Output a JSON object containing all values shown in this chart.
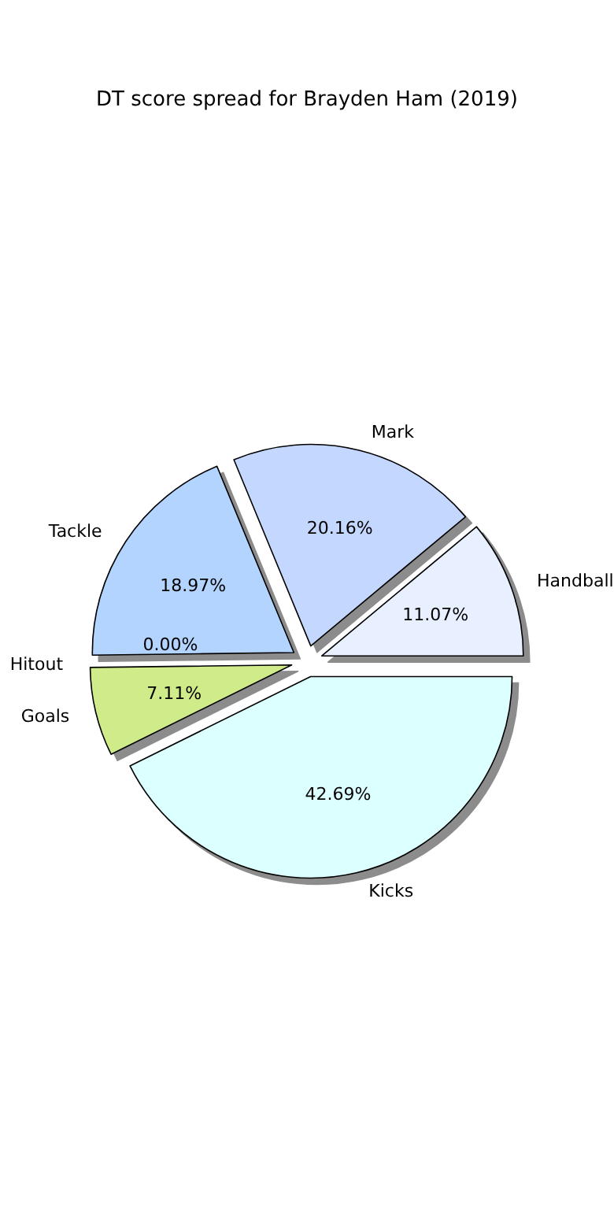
{
  "chart_data": {
    "type": "pie",
    "title": "DT score spread for Brayden Ham (2019)",
    "categories": [
      "Handball",
      "Mark",
      "Tackle",
      "Hitout",
      "Goals",
      "Kicks"
    ],
    "values": [
      11.07,
      20.16,
      18.97,
      0.0,
      7.11,
      42.69
    ],
    "colors": [
      "#e8f0ff",
      "#c4d8ff",
      "#b3d4ff",
      null,
      "#d0ec8a",
      "#dcffff"
    ],
    "value_labels": [
      "11.07%",
      "20.16%",
      "18.97%",
      "0.00%",
      "7.11%",
      "42.69%"
    ]
  }
}
